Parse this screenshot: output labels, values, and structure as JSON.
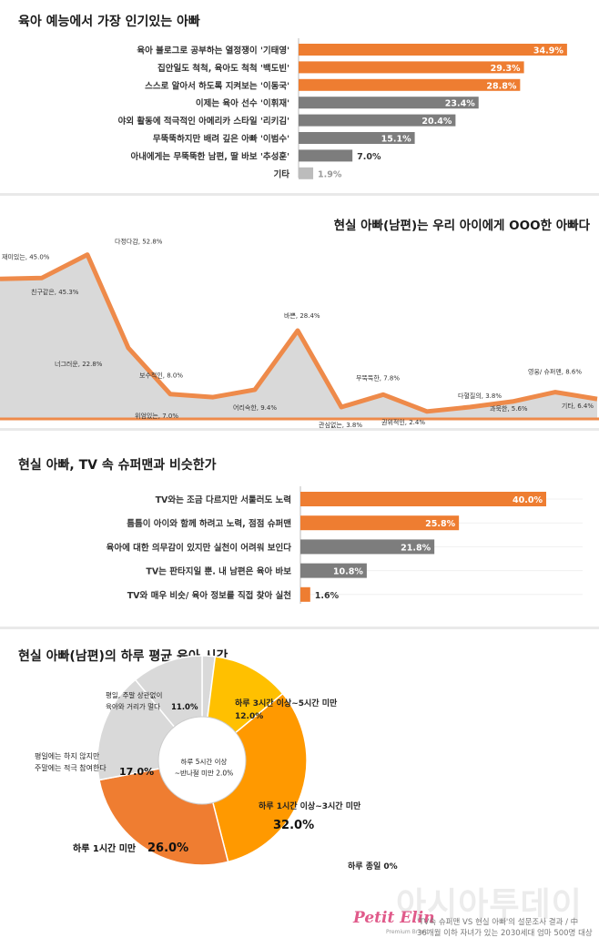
{
  "colors": {
    "orange": "#ee7d31",
    "gray": "#7d7d7d",
    "lightgray": "#bcbcbc",
    "pie": [
      "#d9d9d9",
      "#ffc000",
      "#ff9900",
      "#ef7d31",
      "#d9d9d9",
      "#d9d9d9",
      "#d9d9d9"
    ],
    "area_fill": "#d9d9d9",
    "area_line": "#ee8a4a"
  },
  "chart_data": [
    {
      "type": "bar",
      "title": "육아 예능에서 가장 인기있는 아빠",
      "categories": [
        "육아 블로그로 공부하는 열정쟁이 '기태영'",
        "집안일도 척척, 육아도 척척 '백도빈'",
        "스스로 알아서 하도록 지켜보는 '이동국'",
        "이제는 육아 선수 '이휘재'",
        "야외 활동에 적극적인 아메리카 스타일 '리키김'",
        "무뚝뚝하지만 배려 깊은 아빠 '이범수'",
        "아내에게는 무뚝뚝한 남편, 딸 바보 '추성훈'",
        "기타"
      ],
      "values": [
        34.9,
        29.3,
        28.8,
        23.4,
        20.4,
        15.1,
        7.0,
        1.9
      ],
      "labels": [
        "34.9%",
        "29.3%",
        "28.8%",
        "23.4%",
        "20.4%",
        "15.1%",
        "7.0%",
        "1.9%"
      ],
      "bar_colors": [
        "orange",
        "orange",
        "orange",
        "gray",
        "gray",
        "gray",
        "gray",
        "lightgray"
      ],
      "xlim": [
        0,
        40
      ]
    },
    {
      "type": "area",
      "title": "현실 아빠(남편)는 우리 아이에게 OOO한 아빠다",
      "categories": [
        "재미있는",
        "친구같은",
        "다정다감",
        "너그러운",
        "보수적인",
        "위엄있는",
        "어리숙한",
        "바쁜",
        "관심없는",
        "무뚝뚝한",
        "권위적인",
        "다혈질의",
        "과묵한",
        "영웅/ 슈퍼맨",
        "기타"
      ],
      "values": [
        45.0,
        45.3,
        52.8,
        22.8,
        8.0,
        7.0,
        9.4,
        28.4,
        3.8,
        7.8,
        2.4,
        3.8,
        5.6,
        8.6,
        6.4
      ],
      "labels": [
        "재미있는, 45.0%",
        "친구같은, 45.3%",
        "다정다감, 52.8%",
        "너그러운, 22.8%",
        "보수적인, 8.0%",
        "위엄있는, 7.0%",
        "어리숙한, 9.4%",
        "바쁜, 28.4%",
        "관심없는, 3.8%",
        "무뚝뚝한, 7.8%",
        "권위적인, 2.4%",
        "다혈질의, 3.8%",
        "과묵한, 5.6%",
        "영웅/ 슈퍼맨, 8.6%",
        "기타, 6.4%"
      ]
    },
    {
      "type": "bar",
      "title": "현실 아빠, TV 속 슈퍼맨과 비슷한가",
      "categories": [
        "TV와는 조금 다르지만 서툴러도 노력",
        "틈틈이 아이와 함께 하려고 노력, 점점 슈퍼맨",
        "육아에 대한 의무감이 있지만 실천이 어려워 보인다",
        "TV는 판타지일 뿐. 내 남편은 육아 바보",
        "TV와 매우 비슷/ 육아 정보를 직접 찾아 실천"
      ],
      "values": [
        40.0,
        25.8,
        21.8,
        10.8,
        1.6
      ],
      "labels": [
        "40.0%",
        "25.8%",
        "21.8%",
        "10.8%",
        "1.6%"
      ],
      "bar_colors": [
        "orange",
        "orange",
        "gray",
        "gray",
        "orange"
      ],
      "xlim": [
        0,
        40
      ]
    },
    {
      "type": "pie",
      "title": "현실 아빠(남편)의 하루 평균 육아 시간",
      "slices": [
        {
          "label": "하루 5시간 이상 ~반나절 미만",
          "value": 2.0,
          "text": "2.0%"
        },
        {
          "label": "하루 3시간 이상~5시간 미만",
          "value": 12.0,
          "text": "12.0%"
        },
        {
          "label": "하루 1시간 이상~3시간 미만",
          "value": 32.0,
          "text": "32.0%"
        },
        {
          "label": "하루 1시간 미만",
          "value": 26.0,
          "text": "26.0%"
        },
        {
          "label": "평일에는 하지 않지만 주말에는 적극 참여한다",
          "value": 17.0,
          "text": "17.0%"
        },
        {
          "label": "평일, 주말 상관없이 육아와 거리가 멀다",
          "value": 11.0,
          "text": "11.0%"
        },
        {
          "label": "하루 종일",
          "value": 0,
          "text": "0%"
        }
      ]
    }
  ],
  "footer": {
    "brand": "Petit Elin",
    "brand_sub": "Premium Brand",
    "watermark": "아시아투데이",
    "source_1": "'TV속 슈퍼맨 VS 현실 아빠'의 설문조사 결과 / 中",
    "source_2": "36개월 이하 자녀가 있는 2030세대 엄마 500명 대상"
  }
}
